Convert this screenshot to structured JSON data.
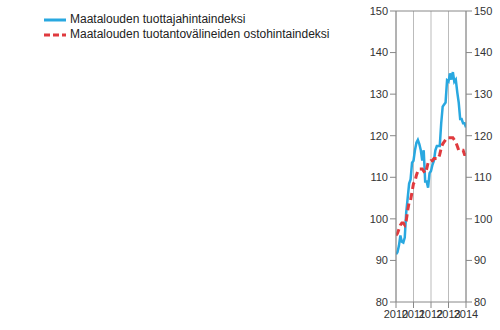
{
  "chart_data": {
    "type": "line",
    "x": [
      2010,
      2010.083,
      2010.167,
      2010.25,
      2010.333,
      2010.417,
      2010.5,
      2010.583,
      2010.667,
      2010.75,
      2010.833,
      2010.917,
      2011,
      2011.083,
      2011.167,
      2011.25,
      2011.333,
      2011.417,
      2011.5,
      2011.583,
      2011.667,
      2011.75,
      2011.833,
      2011.917,
      2012,
      2012.083,
      2012.167,
      2012.25,
      2012.333,
      2012.417,
      2012.5,
      2012.583,
      2012.667,
      2012.75,
      2012.833,
      2012.917,
      2013,
      2013.083,
      2013.167,
      2013.25,
      2013.333,
      2013.417,
      2013.5,
      2013.583,
      2013.667,
      2013.75,
      2013.833,
      2013.917,
      2014
    ],
    "series": [
      {
        "name": "Maatalouden tuottajahintaindeksi",
        "color": "#29a8e0",
        "line_style": "solid",
        "values": [
          91.5,
          92,
          93.5,
          96,
          94.5,
          94.3,
          95.5,
          101.5,
          105,
          108.5,
          109.5,
          113.5,
          114,
          116.5,
          118.3,
          119,
          118,
          116.5,
          114,
          116.5,
          109,
          109,
          107.5,
          111,
          111.5,
          113,
          114,
          116.5,
          117.5,
          117.5,
          117.5,
          123,
          127,
          127.5,
          128,
          133.3,
          133,
          135,
          133.5,
          135.3,
          133,
          133.5,
          130.5,
          128,
          124,
          124,
          123,
          123,
          122
        ]
      },
      {
        "name": "Maatalouden tuotantovälineiden ostohintaindeksi",
        "color": "#e03a3e",
        "line_style": "dashed",
        "values": [
          96,
          96.5,
          97.5,
          98.5,
          99,
          99,
          98.5,
          99.5,
          102,
          104,
          104.5,
          106.5,
          108.5,
          109,
          110.5,
          111.5,
          112,
          112,
          112,
          111.5,
          111,
          112,
          113.5,
          113.5,
          114,
          114,
          114.5,
          114.5,
          114.5,
          114.5,
          115.5,
          117,
          118,
          118.5,
          119,
          119.5,
          119.5,
          119.5,
          119.5,
          119.5,
          119,
          118.5,
          117.5,
          116.5,
          116.5,
          116.5,
          116.5,
          115.5,
          115.5
        ]
      }
    ],
    "xlim": [
      2010,
      2014
    ],
    "xticks": [
      2010,
      2011,
      2012,
      2013,
      2014
    ],
    "ylim": [
      80,
      150
    ],
    "yticks": [
      80,
      90,
      100,
      110,
      120,
      130,
      140,
      150
    ],
    "y2lim": [
      80,
      150
    ],
    "y2ticks": [
      80,
      90,
      100,
      110,
      120,
      130,
      140,
      150
    ],
    "grid": true,
    "legend": "top-left"
  }
}
